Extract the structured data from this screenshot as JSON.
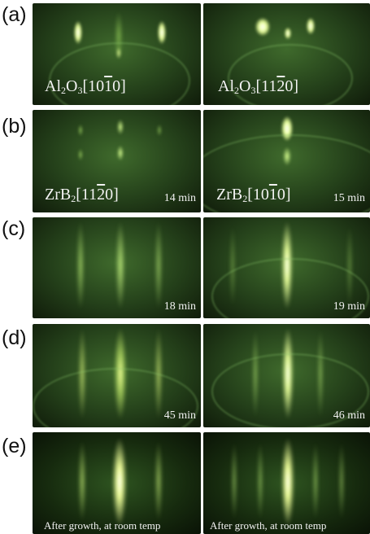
{
  "rows": [
    {
      "label": "(a)",
      "left": {
        "name_pre": "Al",
        "sub": "2",
        "name_mid": "O",
        "sub2": "3",
        "idx_pre": "[10",
        "idx_bar": "1",
        "idx_post": "0]",
        "time": ""
      },
      "right": {
        "name_pre": "Al",
        "sub": "2",
        "name_mid": "O",
        "sub2": "3",
        "idx_pre": "[11",
        "idx_bar": "2",
        "idx_post": "0]",
        "time": ""
      }
    },
    {
      "label": "(b)",
      "left": {
        "name_pre": "ZrB",
        "sub": "2",
        "idx_pre": "[11",
        "idx_bar": "2",
        "idx_post": "0]",
        "time": "14 min"
      },
      "right": {
        "name_pre": "ZrB",
        "sub": "2",
        "idx_pre": "[10",
        "idx_bar": "1",
        "idx_post": "0]",
        "time": "15 min"
      }
    },
    {
      "label": "(c)",
      "left": {
        "time": "18 min"
      },
      "right": {
        "time": "19 min"
      }
    },
    {
      "label": "(d)",
      "left": {
        "time": "45 min"
      },
      "right": {
        "time": "46 min"
      }
    },
    {
      "label": "(e)",
      "left": {
        "caption": "After growth, at room temp"
      },
      "right": {
        "caption": "After growth, at room temp"
      }
    }
  ],
  "colors": {
    "background": "#ffffff",
    "pattern_dark": "#101c0a",
    "pattern_glow": "#c8ff7a",
    "text": "#f2f2f2"
  }
}
